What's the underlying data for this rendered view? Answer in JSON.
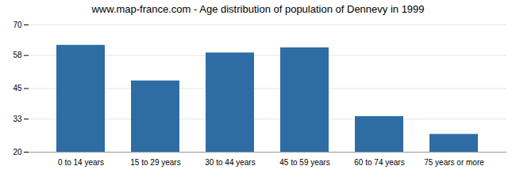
{
  "chart_data": {
    "type": "bar",
    "title": "www.map-france.com - Age distribution of population of Dennevy in 1999",
    "categories": [
      "0 to 14 years",
      "15 to 29 years",
      "30 to 44 years",
      "45 to 59 years",
      "60 to 74 years",
      "75 years or more"
    ],
    "values": [
      62,
      48,
      59,
      61,
      34,
      27
    ],
    "color": "#2e6da4",
    "ylim": [
      20,
      70
    ],
    "yticks": [
      20,
      33,
      45,
      58,
      70
    ],
    "grid": true
  }
}
